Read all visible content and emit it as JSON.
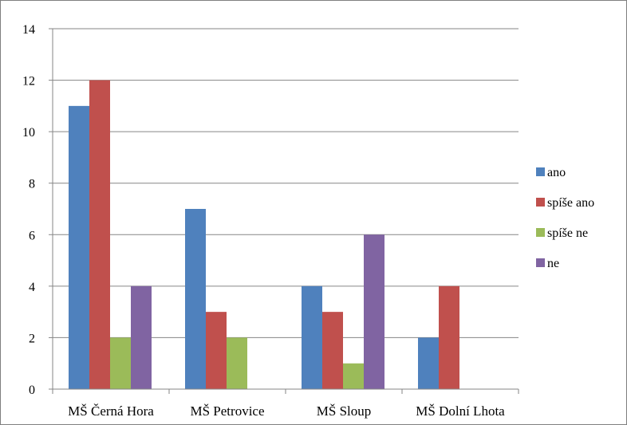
{
  "chart_data": {
    "type": "bar",
    "categories": [
      "MŠ Černá Hora",
      "MŠ Petrovice",
      "MŠ Sloup",
      "MŠ Dolní Lhota"
    ],
    "series": [
      {
        "name": "ano",
        "color": "#4f81bd",
        "values": [
          11,
          7,
          4,
          2
        ]
      },
      {
        "name": "spíše ano",
        "color": "#c0504d",
        "values": [
          12,
          3,
          3,
          4
        ]
      },
      {
        "name": "spíše ne",
        "color": "#9bbb59",
        "values": [
          2,
          2,
          1,
          0
        ]
      },
      {
        "name": "ne",
        "color": "#8064a2",
        "values": [
          4,
          0,
          6,
          0
        ]
      }
    ],
    "ylim": [
      0,
      14
    ],
    "yticks": [
      0,
      2,
      4,
      6,
      8,
      10,
      12,
      14
    ],
    "grid": true,
    "legend": "right"
  }
}
